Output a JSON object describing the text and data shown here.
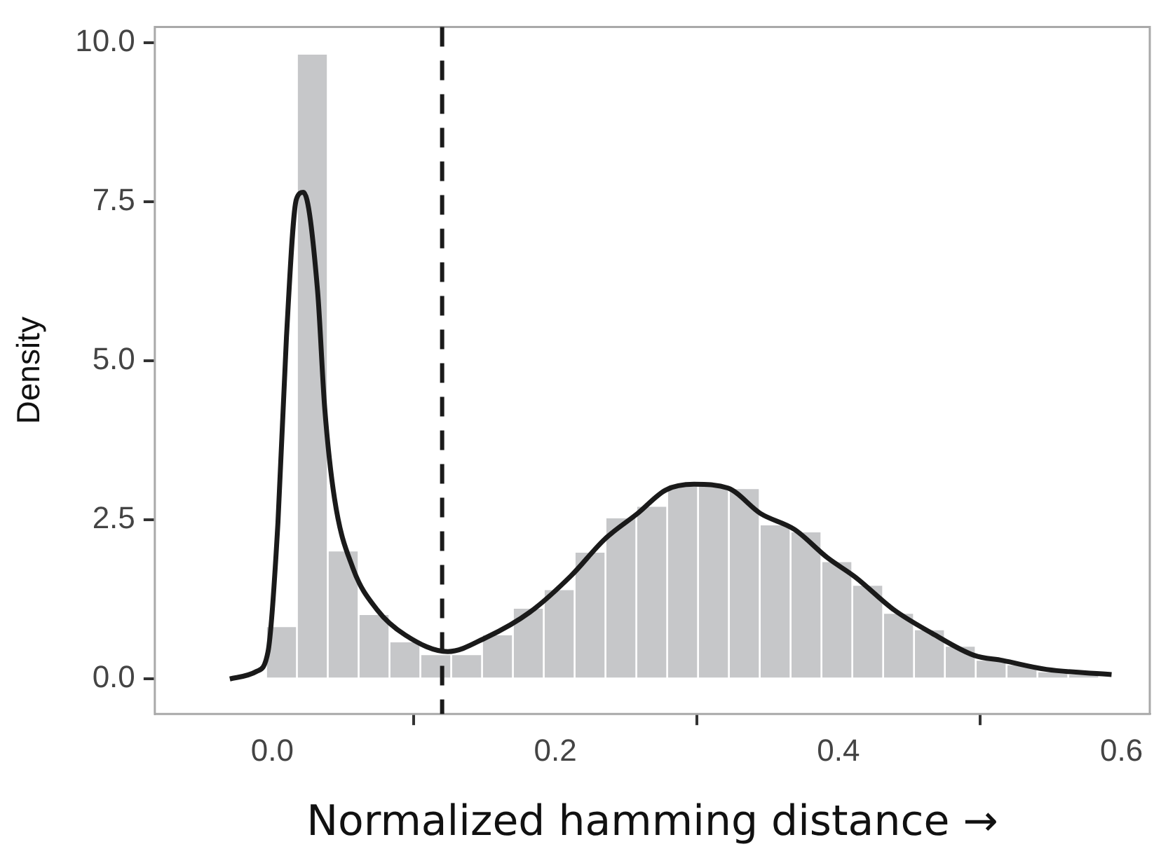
{
  "chart_data": {
    "type": "histogram",
    "xlabel": "Normalized hamming distance →",
    "ylabel": "Density",
    "bins": [
      -0.048,
      -0.0262,
      -0.0044,
      0.0174,
      0.0392,
      0.061,
      0.0828,
      0.1046,
      0.1264,
      0.1482,
      0.17,
      0.1918,
      0.2136,
      0.2354,
      0.2572,
      0.279,
      0.3008,
      0.3226,
      0.3444,
      0.3662,
      0.388,
      0.4098,
      0.4316,
      0.4534,
      0.4752,
      0.497,
      0.5188,
      0.5406,
      0.5624,
      0.5842
    ],
    "values": [
      0,
      0,
      0.83,
      9.83,
      2.02,
      1.02,
      0.59,
      0.39,
      0.39,
      0.7,
      1.12,
      1.41,
      2.0,
      2.54,
      2.72,
      3.04,
      3.04,
      3.0,
      2.43,
      2.32,
      1.85,
      1.48,
      1.04,
      0.78,
      0.52,
      0.3,
      0.23,
      0.12,
      0.08
    ],
    "color": "#c6c7c9",
    "series": [
      {
        "type": "line",
        "color": "#1a1a1a",
        "x": [
          -0.03,
          -0.011,
          -0.003,
          0.004,
          0.01,
          0.017,
          0.022,
          0.032,
          0.037,
          0.044,
          0.057,
          0.074,
          0.094,
          0.124,
          0.151,
          0.182,
          0.211,
          0.235,
          0.258,
          0.278,
          0.298,
          0.322,
          0.345,
          0.369,
          0.392,
          0.412,
          0.439,
          0.466,
          0.496,
          0.516,
          0.547,
          0.593
        ],
        "values": [
          0,
          0.12,
          0.43,
          2.46,
          5.37,
          7.54,
          7.65,
          6.1,
          4.27,
          2.83,
          1.74,
          1.09,
          0.69,
          0.43,
          0.65,
          1.05,
          1.62,
          2.2,
          2.6,
          2.97,
          3.06,
          3.0,
          2.6,
          2.35,
          1.91,
          1.6,
          1.09,
          0.72,
          0.37,
          0.29,
          0.15,
          0.07
        ]
      }
    ],
    "ref_lines": [
      {
        "axis": "x",
        "value": 0.12,
        "color": "#1a1a1a",
        "line_style": "dashed"
      }
    ],
    "xlim": [
      -0.083,
      0.62
    ],
    "ylim": [
      -0.55,
      10.25
    ],
    "xticks": [
      {
        "value": 0,
        "label": "0.0"
      },
      {
        "value": 0.2,
        "label": "0.2"
      },
      {
        "value": 0.4,
        "label": "0.4"
      },
      {
        "value": 0.6,
        "label": "0.6"
      }
    ],
    "yticks": [
      {
        "value": 0,
        "label": "0.0"
      },
      {
        "value": 2.5,
        "label": "2.5"
      },
      {
        "value": 5,
        "label": "5.0"
      },
      {
        "value": 7.5,
        "label": "7.5"
      },
      {
        "value": 10,
        "label": "10.0"
      }
    ],
    "grid": false,
    "legend": false
  }
}
